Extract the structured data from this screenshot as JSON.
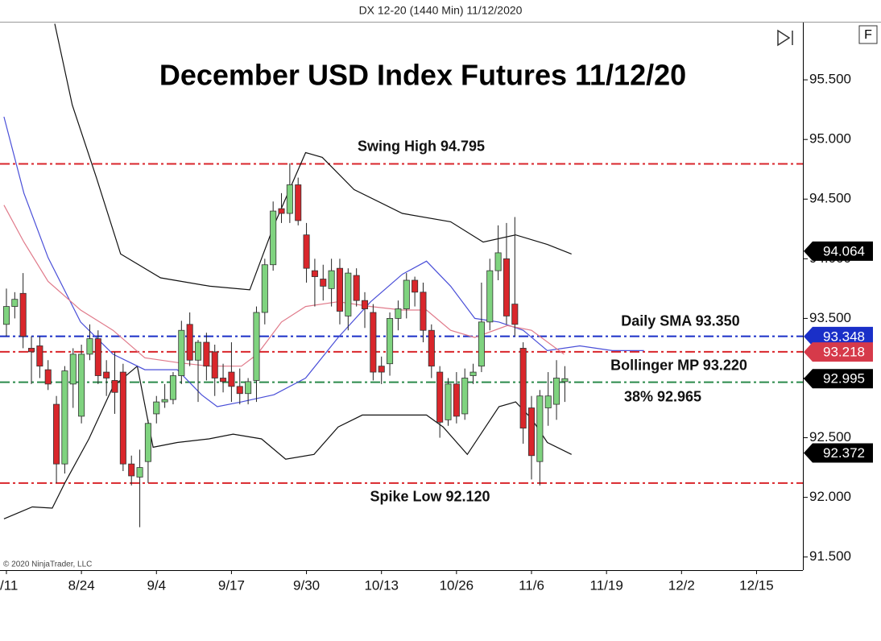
{
  "chart_data": {
    "type": "candlestick",
    "header": "DX 12-20 (1440 Min)  11/12/2020",
    "title": "December USD Index Futures 11/12/20",
    "watermark": "© 2020 NinjaTrader, LLC",
    "panel_button": "F",
    "up_color": "#7fd37f",
    "down_color": "#d9262b",
    "open": [
      93.45,
      93.6,
      93.71,
      93.25,
      93.27,
      93.07,
      92.78,
      92.28,
      92.95,
      92.68,
      93.2,
      93.33,
      93.05,
      92.98,
      93.05,
      92.28,
      92.17,
      92.3,
      92.7,
      92.8,
      92.82,
      93.02,
      93.45,
      93.15,
      93.3,
      93.22,
      93.0,
      93.05,
      92.93,
      92.87,
      92.98,
      93.55,
      93.95,
      94.42,
      94.38,
      94.62,
      94.2,
      93.9,
      93.83,
      93.75,
      93.92,
      93.52,
      93.86,
      93.65,
      93.55,
      93.1,
      93.12,
      93.5,
      93.58,
      93.82,
      93.72,
      93.4,
      93.05,
      92.65,
      92.95,
      92.7,
      93.02,
      93.1,
      93.47,
      93.9,
      94.0,
      93.62,
      93.25,
      92.75,
      92.3,
      92.75,
      92.78,
      92.97
    ],
    "high": [
      93.75,
      93.72,
      93.88,
      93.35,
      93.35,
      93.15,
      92.85,
      93.1,
      93.25,
      93.28,
      93.45,
      93.4,
      93.15,
      93.22,
      93.12,
      92.35,
      92.4,
      92.65,
      92.85,
      92.95,
      93.05,
      93.48,
      93.55,
      93.32,
      93.38,
      93.28,
      93.12,
      93.3,
      93.08,
      93.0,
      93.6,
      94.0,
      94.48,
      94.55,
      94.8,
      94.68,
      94.3,
      94.0,
      93.95,
      94.0,
      94.0,
      93.92,
      93.92,
      93.72,
      93.62,
      93.18,
      93.55,
      93.65,
      93.88,
      93.85,
      93.8,
      93.45,
      93.1,
      93.0,
      93.05,
      93.08,
      93.12,
      93.8,
      94.0,
      94.28,
      94.3,
      94.35,
      93.3,
      92.85,
      92.9,
      93.05,
      93.15,
      93.1
    ],
    "low": [
      93.35,
      93.5,
      93.25,
      92.95,
      93.0,
      92.9,
      92.12,
      92.2,
      92.75,
      92.62,
      93.15,
      92.95,
      92.85,
      92.7,
      92.22,
      92.1,
      91.75,
      92.12,
      92.62,
      92.75,
      92.78,
      92.95,
      93.1,
      92.8,
      92.98,
      92.85,
      92.88,
      92.8,
      92.78,
      92.78,
      92.8,
      93.45,
      93.9,
      94.3,
      94.3,
      94.28,
      93.8,
      93.6,
      93.65,
      93.6,
      93.45,
      93.4,
      93.6,
      93.42,
      92.98,
      92.95,
      93.02,
      93.4,
      93.5,
      93.6,
      93.3,
      93.0,
      92.5,
      92.6,
      92.62,
      92.65,
      92.95,
      93.05,
      93.4,
      93.82,
      93.45,
      93.35,
      92.45,
      92.15,
      92.1,
      92.6,
      92.65,
      92.8
    ],
    "close": [
      93.6,
      93.66,
      93.35,
      93.22,
      93.1,
      92.95,
      92.28,
      93.06,
      93.2,
      93.2,
      93.33,
      93.02,
      93.0,
      92.88,
      92.28,
      92.18,
      92.25,
      92.62,
      92.8,
      92.82,
      93.02,
      93.4,
      93.15,
      93.3,
      93.1,
      93.0,
      92.97,
      92.93,
      92.87,
      92.97,
      93.55,
      93.95,
      94.4,
      94.38,
      94.62,
      94.32,
      93.92,
      93.85,
      93.77,
      93.9,
      93.56,
      93.88,
      93.65,
      93.58,
      93.05,
      93.05,
      93.5,
      93.58,
      93.82,
      93.72,
      93.4,
      93.1,
      92.63,
      92.95,
      92.68,
      93.0,
      93.05,
      93.47,
      93.9,
      94.05,
      93.52,
      93.45,
      92.58,
      92.35,
      92.85,
      92.85,
      93.0,
      92.995
    ],
    "indicators": [
      {
        "color": "#111111",
        "x": [
          5.8,
          7.9,
          10.8,
          13.7,
          18.5,
          24.4,
          29.2,
          32.1,
          35.9,
          37.9,
          41.7,
          47.5,
          53.3,
          57.2,
          61.1,
          64.9,
          67.8
        ],
        "values": [
          95.97,
          95.29,
          94.68,
          94.04,
          93.84,
          93.77,
          93.74,
          94.28,
          94.89,
          94.85,
          94.58,
          94.38,
          94.31,
          94.14,
          94.2,
          94.12,
          94.04
        ]
      },
      {
        "color": "#111111",
        "x": [
          -0.3,
          3.1,
          5.5,
          7.0,
          9.9,
          12.8,
          15.7,
          17.6,
          20.5,
          24.3,
          27.2,
          30.6,
          33.5,
          36.9,
          39.8,
          42.7,
          47.5,
          50.4,
          52.4,
          55.3,
          59.1,
          61.1,
          63.0,
          64.9,
          67.8
        ],
        "values": [
          91.82,
          91.92,
          91.91,
          92.12,
          92.49,
          92.93,
          93.1,
          92.42,
          92.46,
          92.49,
          92.53,
          92.49,
          92.32,
          92.36,
          92.59,
          92.69,
          92.69,
          92.69,
          92.59,
          92.36,
          92.76,
          92.8,
          92.66,
          92.46,
          92.36
        ]
      },
      {
        "color": "#4a4fd8",
        "x": [
          -0.3,
          2.1,
          5.0,
          8.9,
          12.8,
          16.6,
          20.5,
          23.4,
          25.3,
          28.2,
          32.1,
          35.9,
          39.8,
          43.7,
          47.5,
          50.4,
          53.3,
          56.2,
          59.1,
          62.0,
          64.9,
          68.8,
          72.7,
          76.5
        ],
        "values": [
          95.19,
          94.55,
          94.01,
          93.47,
          93.2,
          93.07,
          93.07,
          92.86,
          92.76,
          92.8,
          92.86,
          93.0,
          93.34,
          93.64,
          93.87,
          93.98,
          93.77,
          93.5,
          93.47,
          93.4,
          93.23,
          93.27,
          93.23,
          93.23
        ]
      },
      {
        "color": "#e07a8a",
        "x": [
          -0.3,
          2.1,
          5.0,
          8.9,
          12.8,
          16.6,
          20.5,
          24.3,
          28.2,
          30.1,
          33.0,
          35.9,
          39.8,
          43.7,
          47.5,
          50.4,
          53.3,
          56.2,
          60.1,
          63.0,
          66.9
        ],
        "values": [
          94.45,
          94.14,
          93.81,
          93.57,
          93.4,
          93.17,
          93.13,
          93.1,
          93.1,
          93.2,
          93.47,
          93.6,
          93.64,
          93.6,
          93.57,
          93.57,
          93.4,
          93.34,
          93.44,
          93.4,
          93.2
        ]
      }
    ],
    "levels": [
      {
        "value": 94.795,
        "color": "#d9262b",
        "label": "Swing High 94.795"
      },
      {
        "value": 93.35,
        "color": "#1a2fc8",
        "label": "Daily SMA 93.350"
      },
      {
        "value": 93.22,
        "color": "#d9262b",
        "label": "Bollinger MP 93.220"
      },
      {
        "value": 92.965,
        "color": "#2a8a4a",
        "label": "38% 92.965"
      },
      {
        "value": 92.12,
        "color": "#d9262b",
        "label": "Spike Low 92.120"
      }
    ],
    "price_markers": [
      {
        "value": 94.064,
        "color": "#000000"
      },
      {
        "value": 93.348,
        "color": "#1a2fc8"
      },
      {
        "value": 93.218,
        "color": "#d63a4a"
      },
      {
        "value": 92.995,
        "color": "#000000"
      },
      {
        "value": 92.372,
        "color": "#000000"
      }
    ],
    "ylim": [
      91.39,
      95.98
    ],
    "yticks": [
      {
        "value": 91.5,
        "label": "91.500"
      },
      {
        "value": 92,
        "label": "92.000"
      },
      {
        "value": 92.5,
        "label": "92.500"
      },
      {
        "value": 93,
        "label": "93.000"
      },
      {
        "value": 93.5,
        "label": "93.500"
      },
      {
        "value": 94,
        "label": "94.000"
      },
      {
        "value": 94.5,
        "label": "94.500"
      },
      {
        "value": 95,
        "label": "95.000"
      },
      {
        "value": 95.5,
        "label": "95.500"
      }
    ],
    "xlim": [
      -0.77,
      95.56
    ],
    "xticks": [
      {
        "value": 0,
        "label": "/11"
      },
      {
        "value": 9,
        "label": "8/24"
      },
      {
        "value": 18,
        "label": "9/4"
      },
      {
        "value": 27,
        "label": "9/17"
      },
      {
        "value": 36,
        "label": "9/30"
      },
      {
        "value": 45,
        "label": "10/13"
      },
      {
        "value": 54,
        "label": "10/26"
      },
      {
        "value": 63,
        "label": "11/6"
      },
      {
        "value": 72,
        "label": "11/19"
      },
      {
        "value": 81,
        "label": "12/2"
      },
      {
        "value": 90,
        "label": "12/15"
      }
    ]
  }
}
